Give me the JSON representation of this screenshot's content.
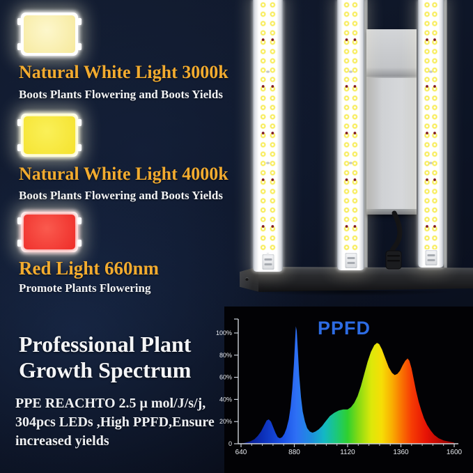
{
  "theme": {
    "background": "#0c1324",
    "accent_gold": "#f2ab2f",
    "text_white": "#f2f3f5"
  },
  "features": [
    {
      "chip_icon": "smd-led-chip-warm-white",
      "chip_color": "#f6e99c",
      "title": "Natural White Light 3000k",
      "description": "Boots Plants Flowering and Boots Yields"
    },
    {
      "chip_icon": "smd-led-chip-yellow",
      "chip_color": "#f5e22e",
      "title": "Natural White Light 4000k",
      "description": "Boots Plants Flowering and Boots Yields"
    },
    {
      "chip_icon": "smd-led-chip-red",
      "chip_color": "#ee2c28",
      "title": "Red Light 660nm",
      "description": "Promote Plants Flowering"
    }
  ],
  "spectrum_section": {
    "heading": "Professional Plant Growth Spectrum",
    "body_lines": [
      "PPE REACHTO 2.5 μ mol/J/s/j,",
      "304pcs LEDs ,High PPFD,Ensure",
      "increased yields"
    ]
  },
  "chart_data": {
    "type": "area",
    "title": "PPFD",
    "title_color": "#2d6ce4",
    "axis_color": "#ccd1d8",
    "label_color": "#e6e9ee",
    "background": "#020205",
    "grid": false,
    "legend": null,
    "xlabel": "",
    "ylabel": "",
    "xlim": [
      640,
      1600
    ],
    "ylim": [
      0,
      115
    ],
    "x_ticks": [
      {
        "value": 640,
        "label": "640"
      },
      {
        "value": 880,
        "label": "880"
      },
      {
        "value": 1120,
        "label": "1120"
      },
      {
        "value": 1360,
        "label": "1360"
      },
      {
        "value": 1600,
        "label": "1600"
      }
    ],
    "y_ticks": [
      {
        "value": 0,
        "label": "0"
      },
      {
        "value": 20,
        "label": "20%"
      },
      {
        "value": 40,
        "label": "40%"
      },
      {
        "value": 60,
        "label": "60%"
      },
      {
        "value": 80,
        "label": "80%"
      },
      {
        "value": 100,
        "label": "100%"
      }
    ],
    "minor_tick_step": 48,
    "series": [
      {
        "name": "PPFD spectrum",
        "fill": "rainbow-gradient",
        "points": [
          [
            640,
            0
          ],
          [
            660,
            1
          ],
          [
            680,
            2
          ],
          [
            700,
            4
          ],
          [
            715,
            7
          ],
          [
            730,
            11
          ],
          [
            745,
            17
          ],
          [
            755,
            21
          ],
          [
            765,
            22
          ],
          [
            775,
            20
          ],
          [
            785,
            15
          ],
          [
            795,
            10
          ],
          [
            805,
            6
          ],
          [
            815,
            5
          ],
          [
            825,
            6
          ],
          [
            835,
            9
          ],
          [
            845,
            14
          ],
          [
            855,
            22
          ],
          [
            863,
            33
          ],
          [
            871,
            50
          ],
          [
            878,
            72
          ],
          [
            883,
            92
          ],
          [
            887,
            106
          ],
          [
            891,
            102
          ],
          [
            896,
            84
          ],
          [
            902,
            62
          ],
          [
            910,
            42
          ],
          [
            918,
            29
          ],
          [
            928,
            20
          ],
          [
            938,
            14
          ],
          [
            950,
            11
          ],
          [
            962,
            10
          ],
          [
            975,
            11
          ],
          [
            990,
            13
          ],
          [
            1005,
            16
          ],
          [
            1020,
            20
          ],
          [
            1040,
            25
          ],
          [
            1060,
            28
          ],
          [
            1080,
            30
          ],
          [
            1100,
            31
          ],
          [
            1120,
            31
          ],
          [
            1135,
            33
          ],
          [
            1150,
            37
          ],
          [
            1165,
            43
          ],
          [
            1180,
            52
          ],
          [
            1195,
            63
          ],
          [
            1210,
            74
          ],
          [
            1225,
            83
          ],
          [
            1240,
            89
          ],
          [
            1252,
            91
          ],
          [
            1262,
            90
          ],
          [
            1275,
            85
          ],
          [
            1290,
            77
          ],
          [
            1305,
            69
          ],
          [
            1320,
            64
          ],
          [
            1332,
            62
          ],
          [
            1344,
            63
          ],
          [
            1356,
            66
          ],
          [
            1368,
            71
          ],
          [
            1380,
            75
          ],
          [
            1390,
            77
          ],
          [
            1398,
            75
          ],
          [
            1408,
            68
          ],
          [
            1418,
            58
          ],
          [
            1428,
            48
          ],
          [
            1440,
            38
          ],
          [
            1452,
            30
          ],
          [
            1464,
            23
          ],
          [
            1478,
            17
          ],
          [
            1494,
            12
          ],
          [
            1510,
            8
          ],
          [
            1530,
            5
          ],
          [
            1552,
            3
          ],
          [
            1575,
            2
          ],
          [
            1600,
            1
          ]
        ]
      }
    ],
    "gradient_stops": [
      {
        "offset": 0,
        "color": "#08157a"
      },
      {
        "offset": 0.1,
        "color": "#0c2fb8"
      },
      {
        "offset": 0.2,
        "color": "#1b53e8"
      },
      {
        "offset": 0.26,
        "color": "#2e70f5"
      },
      {
        "offset": 0.33,
        "color": "#1e8ede"
      },
      {
        "offset": 0.39,
        "color": "#13b8c4"
      },
      {
        "offset": 0.45,
        "color": "#1cc878"
      },
      {
        "offset": 0.5,
        "color": "#2fd02f"
      },
      {
        "offset": 0.55,
        "color": "#84da14"
      },
      {
        "offset": 0.61,
        "color": "#dce80a"
      },
      {
        "offset": 0.66,
        "color": "#f6de06"
      },
      {
        "offset": 0.71,
        "color": "#f9ac02"
      },
      {
        "offset": 0.755,
        "color": "#f97102"
      },
      {
        "offset": 0.8,
        "color": "#f63c04"
      },
      {
        "offset": 0.87,
        "color": "#e61205"
      },
      {
        "offset": 1,
        "color": "#8c0202"
      }
    ]
  }
}
